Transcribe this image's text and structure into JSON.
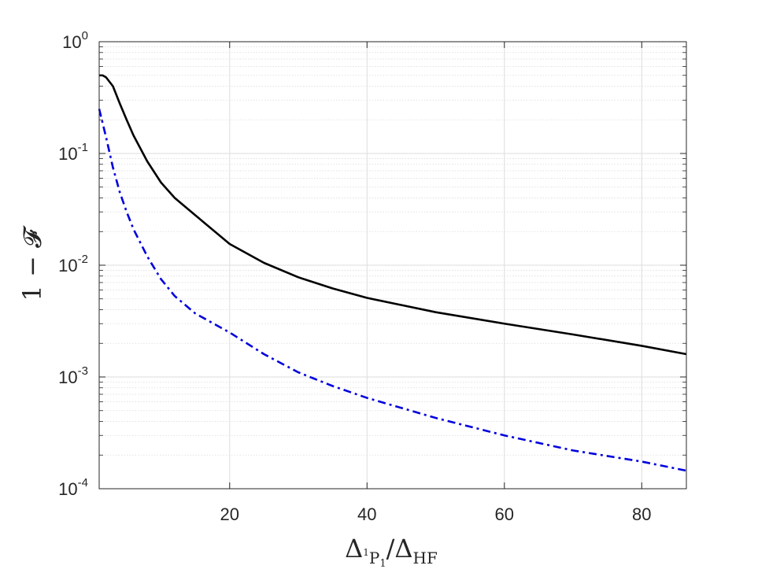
{
  "chart_data": {
    "type": "line",
    "yscale": "log",
    "xlim": [
      1,
      86.5
    ],
    "ylim": [
      0.0001,
      1
    ],
    "grid": true,
    "minor_grid": true,
    "xlabel": {
      "base": "Δ",
      "sub_sup": "1",
      "sub_main": "P",
      "sub_sub": "1",
      "slash": "/Δ",
      "sub2": "HF"
    },
    "ylabel": "1 − 𝓕",
    "xticks": [
      20,
      40,
      60,
      80
    ],
    "xtick_labels": [
      "20",
      "40",
      "60",
      "80"
    ],
    "yticks": [
      {
        "value": 1,
        "base": "10",
        "exp": "0"
      },
      {
        "value": 0.1,
        "base": "10",
        "exp": "-1"
      },
      {
        "value": 0.01,
        "base": "10",
        "exp": "-2"
      },
      {
        "value": 0.001,
        "base": "10",
        "exp": "-3"
      },
      {
        "value": 0.0001,
        "base": "10",
        "exp": "-4"
      }
    ],
    "series": [
      {
        "style": "solid",
        "color": "#000000",
        "x": [
          1,
          1.5,
          2,
          3,
          4,
          5,
          6,
          8,
          10,
          12,
          15,
          20,
          25,
          30,
          35,
          40,
          50,
          60,
          70,
          80,
          86.5
        ],
        "y": [
          0.5,
          0.5,
          0.48,
          0.4,
          0.28,
          0.2,
          0.145,
          0.085,
          0.055,
          0.04,
          0.028,
          0.0155,
          0.0105,
          0.0078,
          0.0062,
          0.0051,
          0.0038,
          0.003,
          0.0024,
          0.0019,
          0.0016
        ]
      },
      {
        "style": "dashdot",
        "color": "#0000dd",
        "x": [
          1,
          2,
          3,
          4,
          5,
          6,
          8,
          10,
          12,
          15,
          20,
          25,
          30,
          35,
          40,
          50,
          60,
          70,
          80,
          86.5
        ],
        "y": [
          0.25,
          0.14,
          0.075,
          0.045,
          0.03,
          0.021,
          0.012,
          0.0075,
          0.0053,
          0.0037,
          0.0025,
          0.0016,
          0.0011,
          0.00083,
          0.00065,
          0.00043,
          0.0003,
          0.00022,
          0.000175,
          0.000145
        ]
      }
    ]
  }
}
